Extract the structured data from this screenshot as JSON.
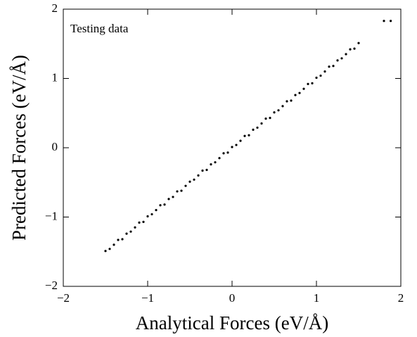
{
  "chart_data": {
    "type": "scatter",
    "annotation": "Testing data",
    "xlabel": "Analytical Forces (eV/Å)",
    "ylabel": "Predicted Forces (eV/Å)",
    "color": "#000000",
    "xlim": [
      -2,
      2
    ],
    "ylim": [
      -2,
      2
    ],
    "xticks": [
      {
        "value": -2,
        "label": "−2"
      },
      {
        "value": -1,
        "label": "−1"
      },
      0,
      1,
      2
    ],
    "yticks": [
      {
        "value": -2,
        "label": "−2"
      },
      {
        "value": -1,
        "label": "−1"
      },
      0,
      1,
      2
    ],
    "x": [
      -1.5,
      -1.45,
      -1.4,
      -1.35,
      -1.3,
      -1.25,
      -1.2,
      -1.15,
      -1.1,
      -1.05,
      -1,
      -0.95,
      -0.9,
      -0.85,
      -0.8,
      -0.75,
      -0.7,
      -0.65,
      -0.6,
      -0.55,
      -0.5,
      -0.45,
      -0.4,
      -0.35,
      -0.3,
      -0.25,
      -0.2,
      -0.15,
      -0.1,
      -0.05,
      0,
      0.05,
      0.1,
      0.15,
      0.2,
      0.25,
      0.3,
      0.35,
      0.4,
      0.45,
      0.5,
      0.55,
      0.6,
      0.65,
      0.7,
      0.75,
      0.8,
      0.85,
      0.9,
      0.95,
      1,
      1.05,
      1.1,
      1.15,
      1.2,
      1.25,
      1.3,
      1.35,
      1.4,
      1.45,
      1.5,
      1.8,
      1.88
    ],
    "values": [
      -1.49,
      -1.46,
      -1.4,
      -1.33,
      -1.32,
      -1.24,
      -1.21,
      -1.15,
      -1.08,
      -1.07,
      -0.99,
      -0.96,
      -0.9,
      -0.83,
      -0.82,
      -0.74,
      -0.71,
      -0.63,
      -0.62,
      -0.55,
      -0.49,
      -0.46,
      -0.4,
      -0.33,
      -0.32,
      -0.24,
      -0.21,
      -0.15,
      -0.08,
      -0.07,
      0.01,
      0.04,
      0.1,
      0.17,
      0.18,
      0.26,
      0.29,
      0.35,
      0.42,
      0.43,
      0.51,
      0.54,
      0.6,
      0.67,
      0.68,
      0.76,
      0.79,
      0.85,
      0.92,
      0.93,
      1.01,
      1.04,
      1.1,
      1.17,
      1.18,
      1.26,
      1.29,
      1.35,
      1.42,
      1.43,
      1.51,
      1.83,
      1.83
    ]
  }
}
